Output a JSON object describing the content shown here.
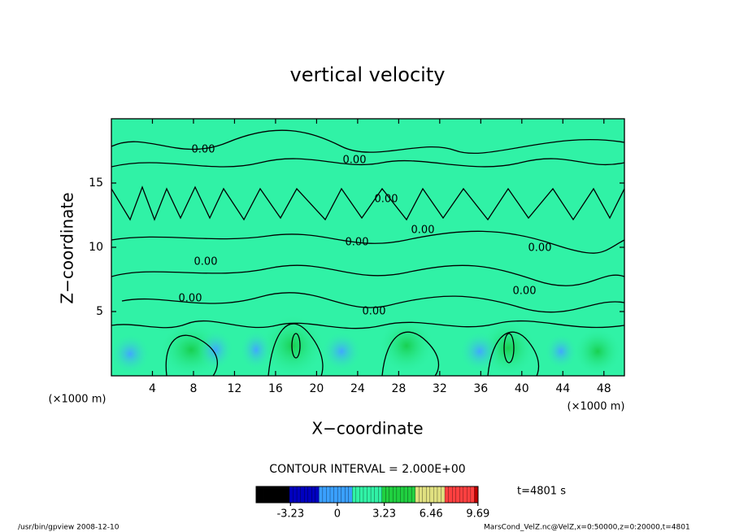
{
  "chart_data": {
    "type": "contour",
    "title": "vertical velocity",
    "x_label": "X−coordinate",
    "y_label": "Z−coordinate",
    "x_unit_label": "(×1000 m)",
    "y_unit_label": "(×1000 m)",
    "xlim": [
      0,
      50
    ],
    "xticks": [
      4,
      8,
      12,
      16,
      20,
      24,
      28,
      32,
      36,
      40,
      44,
      48
    ],
    "ylim": [
      0,
      20
    ],
    "yticks": [
      5,
      10,
      15
    ],
    "field_color": "#30f2a6",
    "contour_interval_label": "CONTOUR INTERVAL = 2.000E+00",
    "contour_labels": [
      {
        "value": 0,
        "label": "0.00"
      },
      {
        "value": 0,
        "label": "0.00"
      },
      {
        "value": 0,
        "label": "0.00"
      },
      {
        "value": 0,
        "label": "0.00"
      },
      {
        "value": 0,
        "label": "0.00"
      },
      {
        "value": 0,
        "label": "0.00"
      },
      {
        "value": 0,
        "label": "0.00"
      },
      {
        "value": 0,
        "label": "0.00"
      },
      {
        "value": 0,
        "label": "0.00"
      },
      {
        "value": 0,
        "label": "0.00"
      }
    ],
    "colorbar": {
      "lim": [
        -5.6,
        9.7
      ],
      "ticks": [
        -3.23,
        0,
        3.23,
        6.46,
        9.69
      ],
      "colors": [
        "#000000",
        "#0000c0",
        "#3aa0ff",
        "#30f2a6",
        "#20d040",
        "#e0e080",
        "#ff4040",
        "#c00000"
      ]
    },
    "time_label": "t=4801 s",
    "footer_left": "/usr/bin/gpview   2008-12-10",
    "footer_right": "MarsCond_VelZ.nc@VelZ,x=0:50000,z=0:20000,t=4801"
  }
}
